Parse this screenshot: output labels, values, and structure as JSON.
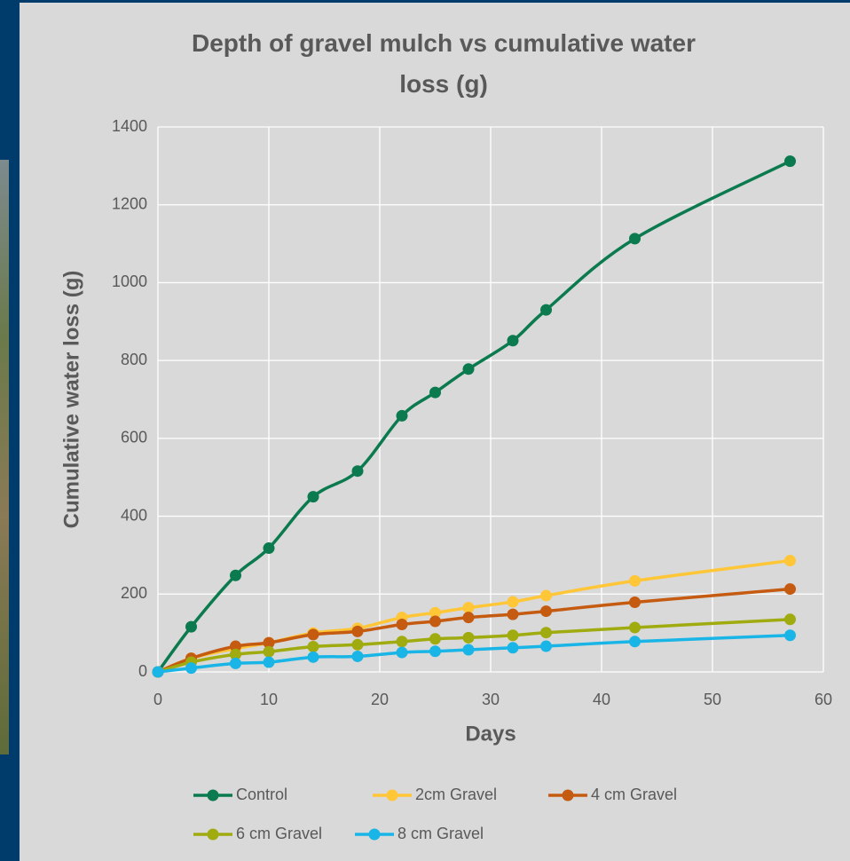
{
  "chart_data": {
    "type": "line",
    "title": "Depth of gravel mulch vs cumulative water loss (g)",
    "x_label": "Days",
    "y_label": "Cumulative water loss (g)",
    "x": [
      0,
      3,
      7,
      10,
      14,
      18,
      22,
      25,
      28,
      32,
      35,
      43,
      57
    ],
    "series": [
      {
        "name": "Control",
        "color": "#0b7a4f",
        "values": [
          0,
          116,
          248,
          318,
          450,
          516,
          658,
          718,
          778,
          851,
          930,
          1113,
          1312
        ]
      },
      {
        "name": "2cm Gravel",
        "color": "#ffc637",
        "values": [
          0,
          35,
          60,
          75,
          100,
          112,
          140,
          152,
          165,
          180,
          196,
          234,
          286
        ]
      },
      {
        "name": "4 cm Gravel",
        "color": "#c55a11",
        "values": [
          0,
          35,
          66,
          75,
          96,
          104,
          122,
          130,
          140,
          148,
          156,
          179,
          213
        ]
      },
      {
        "name": "6 cm Gravel",
        "color": "#9fab0f",
        "values": [
          0,
          25,
          45,
          52,
          65,
          70,
          78,
          85,
          88,
          94,
          101,
          114,
          135
        ]
      },
      {
        "name": "8 cm Gravel",
        "color": "#19b5e6",
        "values": [
          0,
          10,
          22,
          25,
          38,
          40,
          50,
          53,
          57,
          62,
          66,
          78,
          94
        ]
      }
    ],
    "xlim": [
      0,
      60
    ],
    "xticks": [
      0,
      10,
      20,
      30,
      40,
      50,
      60
    ],
    "ylim": [
      0,
      1400
    ],
    "yticks": [
      0,
      200,
      400,
      600,
      800,
      1000,
      1200,
      1400
    ],
    "grid": true,
    "smooth": true,
    "legend": "bottom"
  }
}
